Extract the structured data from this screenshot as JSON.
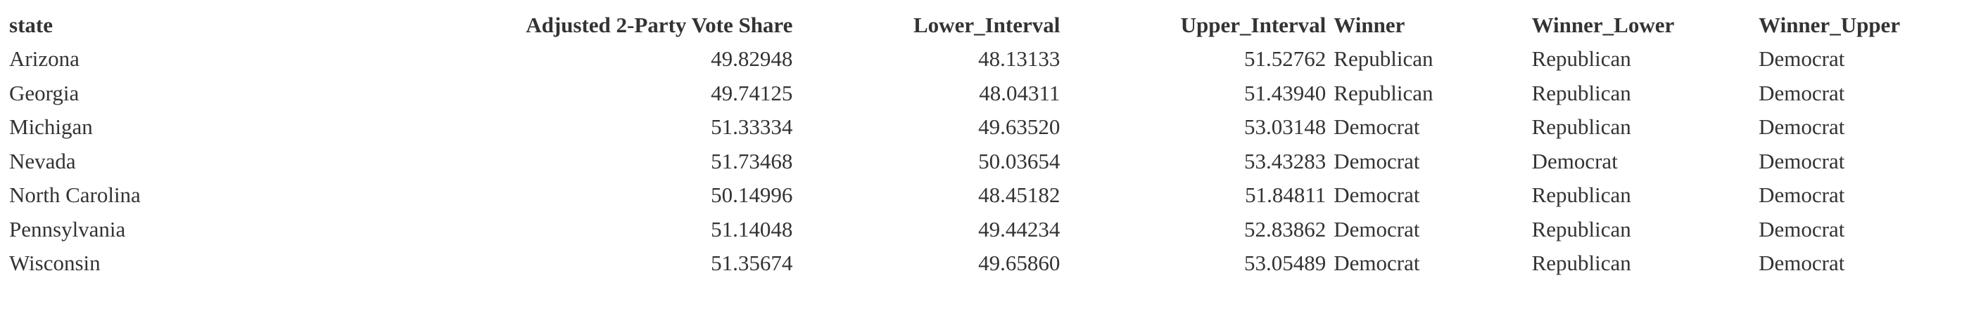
{
  "table": {
    "headers": [
      "state",
      "Adjusted 2-Party Vote Share",
      "Lower_Interval",
      "Upper_Interval",
      "Winner",
      "Winner_Lower",
      "Winner_Upper"
    ],
    "rows": [
      [
        "Arizona",
        "49.82948",
        "48.13133",
        "51.52762",
        "Republican",
        "Republican",
        "Democrat"
      ],
      [
        "Georgia",
        "49.74125",
        "48.04311",
        "51.43940",
        "Republican",
        "Republican",
        "Democrat"
      ],
      [
        "Michigan",
        "51.33334",
        "49.63520",
        "53.03148",
        "Democrat",
        "Republican",
        "Democrat"
      ],
      [
        "Nevada",
        "51.73468",
        "50.03654",
        "53.43283",
        "Democrat",
        "Democrat",
        "Democrat"
      ],
      [
        "North Carolina",
        "50.14996",
        "48.45182",
        "51.84811",
        "Democrat",
        "Republican",
        "Democrat"
      ],
      [
        "Pennsylvania",
        "51.14048",
        "49.44234",
        "52.83862",
        "Democrat",
        "Republican",
        "Democrat"
      ],
      [
        "Wisconsin",
        "51.35674",
        "49.65860",
        "53.05489",
        "Democrat",
        "Republican",
        "Democrat"
      ]
    ]
  }
}
